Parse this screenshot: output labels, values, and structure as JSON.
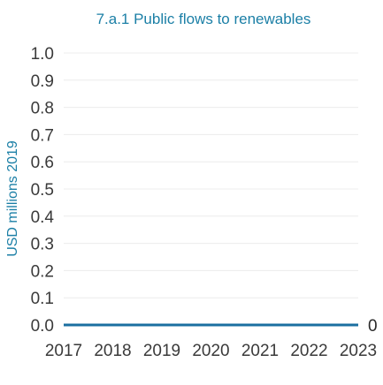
{
  "chart_data": {
    "type": "line",
    "title": "7.a.1 Public flows to renewables",
    "xlabel": "",
    "ylabel": "USD millions 2019",
    "x": [
      "2017",
      "2018",
      "2019",
      "2020",
      "2021",
      "2022",
      "2023"
    ],
    "series": [
      {
        "values": [
          0,
          0,
          0,
          0,
          0,
          0,
          0
        ],
        "color": "#1b6fa0"
      }
    ],
    "ylim": [
      0,
      1.0
    ],
    "yticks": [
      "0.0",
      "0.1",
      "0.2",
      "0.3",
      "0.4",
      "0.5",
      "0.6",
      "0.7",
      "0.8",
      "0.9",
      "1.0"
    ],
    "end_label": "0",
    "grid": true
  }
}
